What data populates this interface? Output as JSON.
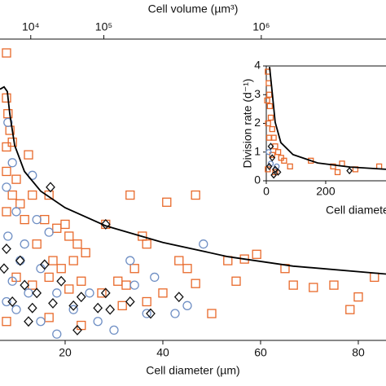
{
  "chart_data": [
    {
      "type": "scatter",
      "x_label": "Cell diameter (µm)",
      "x2_label": "Cell volume (µm³)",
      "xlim": [
        6.67,
        85.67
      ],
      "xticks": [
        20,
        40,
        60,
        80
      ],
      "x2lim": [
        1360,
        2890000
      ],
      "x2scale": "cube-root",
      "x2ticks": [
        {
          "value": 10000,
          "label": "10⁴"
        },
        {
          "value": 100000,
          "label": "10⁵"
        },
        {
          "value": 1000000,
          "label": "10⁶"
        }
      ],
      "ylim": [
        0,
        4.3
      ],
      "series": [
        {
          "marker": "square",
          "color": "#e8692a",
          "x": [
            8.0,
            8.0,
            8.3,
            8.7,
            8.0,
            9.2,
            12.5,
            8.0,
            10.0,
            13.3,
            9.2,
            10.8,
            16.7,
            8.0,
            11.7,
            15.8,
            18.3,
            14.2,
            20.0,
            20.8,
            22.5,
            17.5,
            19.2,
            21.7,
            24.2,
            16.7,
            13.3,
            10.0,
            23.3,
            20.8,
            28.3,
            33.3,
            40.8,
            46.7,
            35.8,
            36.7,
            34.2,
            30.8,
            27.5,
            32.5,
            43.3,
            45.0,
            46.7,
            40.0,
            36.7,
            31.7,
            53.3,
            56.7,
            59.2,
            55.0,
            65.0,
            66.7,
            70.8,
            75.0,
            80.0,
            83.3,
            50.0,
            23.3,
            16.7,
            8.0,
            78.3
          ],
          "values": [
            3.64,
            3.07,
            2.87,
            2.66,
            2.45,
            2.51,
            2.35,
            2.14,
            2.04,
            1.84,
            1.84,
            1.73,
            1.84,
            1.63,
            1.53,
            1.53,
            1.42,
            1.22,
            1.47,
            1.32,
            1.22,
            1.01,
            0.91,
            1.01,
            1.11,
            0.8,
            0.7,
            0.8,
            0.75,
            0.65,
            1.47,
            1.84,
            1.75,
            1.84,
            1.32,
            1.22,
            0.91,
            0.75,
            0.6,
            0.7,
            1.01,
            0.91,
            0.72,
            0.6,
            0.49,
            0.44,
            1.01,
            1.03,
            1.09,
            0.75,
            0.91,
            0.7,
            0.67,
            0.7,
            0.55,
            0.8,
            0.34,
            0.19,
            0.29,
            0.24,
            0.39
          ]
        },
        {
          "marker": "circle",
          "color": "#6f8fc4",
          "x": [
            8.3,
            9.2,
            8.0,
            13.3,
            10.0,
            14.2,
            8.3,
            11.7,
            16.7,
            10.8,
            15.0,
            9.2,
            12.5,
            18.3,
            21.7,
            25.0,
            33.3,
            34.2,
            38.3,
            42.5,
            45.0,
            36.7,
            10.0,
            15.0,
            8.0,
            26.7,
            30.0,
            18.3,
            48.3
          ],
          "values": [
            2.76,
            2.25,
            1.94,
            2.09,
            1.63,
            1.53,
            1.32,
            1.22,
            1.37,
            1.01,
            0.91,
            0.75,
            0.6,
            0.6,
            0.39,
            0.6,
            1.01,
            0.7,
            0.8,
            0.34,
            0.44,
            0.34,
            0.39,
            0.24,
            0.49,
            0.24,
            0.13,
            0.08,
            1.22
          ]
        },
        {
          "marker": "diamond",
          "color": "#111111",
          "x": [
            17.0,
            8.0,
            10.8,
            15.8,
            19.2,
            11.7,
            7.5,
            14.2,
            9.2,
            13.3,
            17.5,
            21.7,
            23.3,
            26.7,
            29.2,
            28.3,
            33.3,
            37.5,
            22.5,
            12.5,
            28.3,
            43.3
          ],
          "values": [
            1.94,
            1.16,
            1.01,
            0.96,
            0.75,
            0.7,
            0.91,
            0.6,
            0.49,
            0.41,
            0.47,
            0.44,
            0.55,
            0.41,
            0.39,
            0.6,
            0.49,
            0.34,
            0.13,
            0.24,
            1.47,
            0.55
          ]
        },
        {
          "marker": "line",
          "color": "#000000",
          "x": [
            6.67,
            7.5,
            8.17,
            8.67,
            9.67,
            11.67,
            15,
            20,
            28.33,
            40,
            53.33,
            66.67,
            85.67
          ],
          "values": [
            3.18,
            3.21,
            3.15,
            2.87,
            2.47,
            2.14,
            1.89,
            1.68,
            1.45,
            1.24,
            1.06,
            0.94,
            0.84
          ]
        }
      ]
    },
    {
      "type": "scatter",
      "x_label": "Cell diameter (µm)",
      "y_label": "Division rate (d⁻¹)",
      "xlim": [
        0,
        403
      ],
      "xticks": [
        0,
        200
      ],
      "ylim": [
        0,
        4
      ],
      "yticks": [
        0,
        1,
        2,
        3,
        4
      ],
      "series": [
        {
          "marker": "square",
          "color": "#e8692a",
          "x": [
            5,
            8,
            10,
            12,
            15,
            20,
            25,
            30,
            40,
            50,
            60,
            80,
            10,
            20,
            5,
            30,
            225,
            240,
            255,
            300,
            380,
            150,
            3,
            6
          ],
          "values": [
            3.8,
            3.4,
            3.0,
            2.6,
            2.2,
            1.8,
            1.5,
            1.2,
            1.0,
            0.8,
            0.7,
            0.5,
            1.5,
            0.9,
            0.4,
            0.3,
            0.5,
            0.3,
            0.6,
            0.4,
            0.5,
            0.7,
            2.8,
            2.0
          ]
        },
        {
          "marker": "circle",
          "color": "#6f8fc4",
          "x": [
            8,
            15,
            35
          ],
          "values": [
            1.0,
            0.6,
            0.5
          ]
        },
        {
          "marker": "diamond",
          "color": "#111111",
          "x": [
            10,
            20,
            30,
            15,
            40,
            25,
            280
          ],
          "values": [
            0.5,
            0.8,
            0.4,
            1.2,
            0.3,
            0.2,
            0.35
          ]
        },
        {
          "marker": "line",
          "color": "#000000",
          "x": [
            11,
            19,
            30,
            49,
            90,
            173,
            282,
            403
          ],
          "values": [
            3.97,
            3.18,
            2.04,
            1.33,
            0.91,
            0.62,
            0.48,
            0.4
          ]
        }
      ]
    }
  ]
}
